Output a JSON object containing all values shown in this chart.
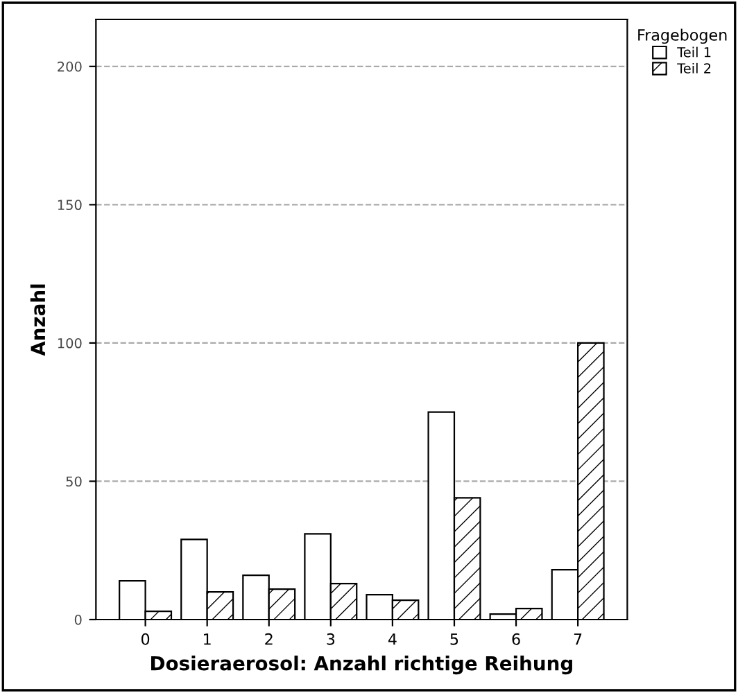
{
  "chart_data": {
    "type": "bar",
    "xlabel": "Dosieraerosol: Anzahl richtige Reihung",
    "ylabel": "Anzahl",
    "legend_title": "Fragebogen",
    "categories": [
      "0",
      "1",
      "2",
      "3",
      "4",
      "5",
      "6",
      "7"
    ],
    "series": [
      {
        "name": "Teil 1",
        "color": "#ffffff",
        "values": [
          14,
          29,
          16,
          31,
          9,
          75,
          2,
          18
        ]
      },
      {
        "name": "Teil 2",
        "color": "#000000",
        "values": [
          3,
          10,
          11,
          13,
          7,
          44,
          4,
          100
        ]
      }
    ],
    "ylim": [
      0,
      217
    ],
    "yticks": [
      0,
      50,
      100,
      150,
      200
    ],
    "grid": "y",
    "legend": "top right"
  }
}
